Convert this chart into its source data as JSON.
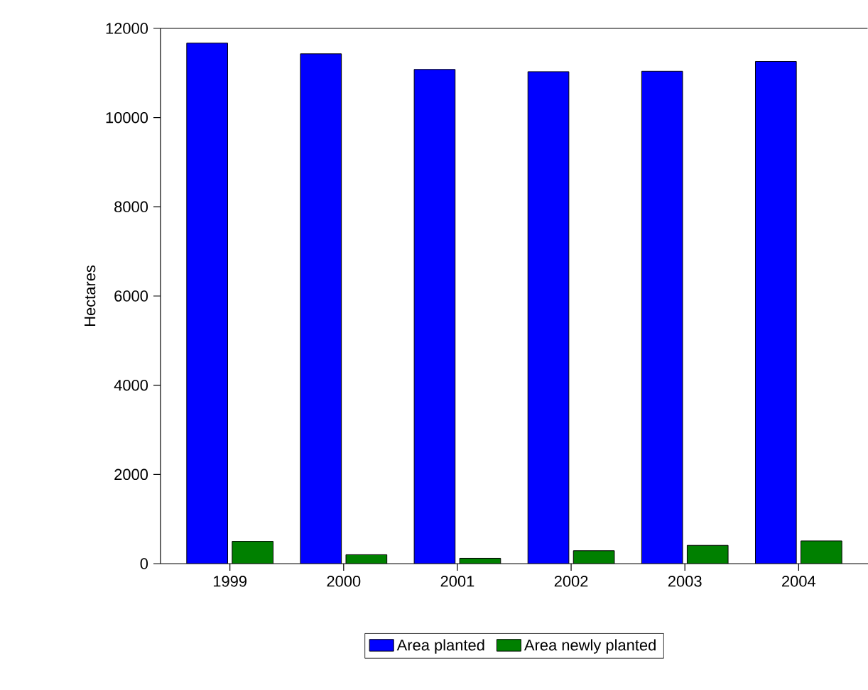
{
  "chart_data": {
    "type": "bar",
    "ylabel": "Hectares",
    "categories": [
      "1999",
      "2000",
      "2001",
      "2002",
      "2003",
      "2004"
    ],
    "series": [
      {
        "name": "Area planted",
        "color": "#0000ff",
        "values": [
          11670,
          11430,
          11080,
          11030,
          11040,
          11260
        ]
      },
      {
        "name": "Area newly planted",
        "color": "#008000",
        "values": [
          500,
          200,
          120,
          290,
          410,
          510
        ]
      }
    ],
    "ylim": [
      0,
      12000
    ],
    "yticks": [
      0,
      2000,
      4000,
      6000,
      8000,
      10000,
      12000
    ],
    "grid": false,
    "legend": "bottom"
  }
}
